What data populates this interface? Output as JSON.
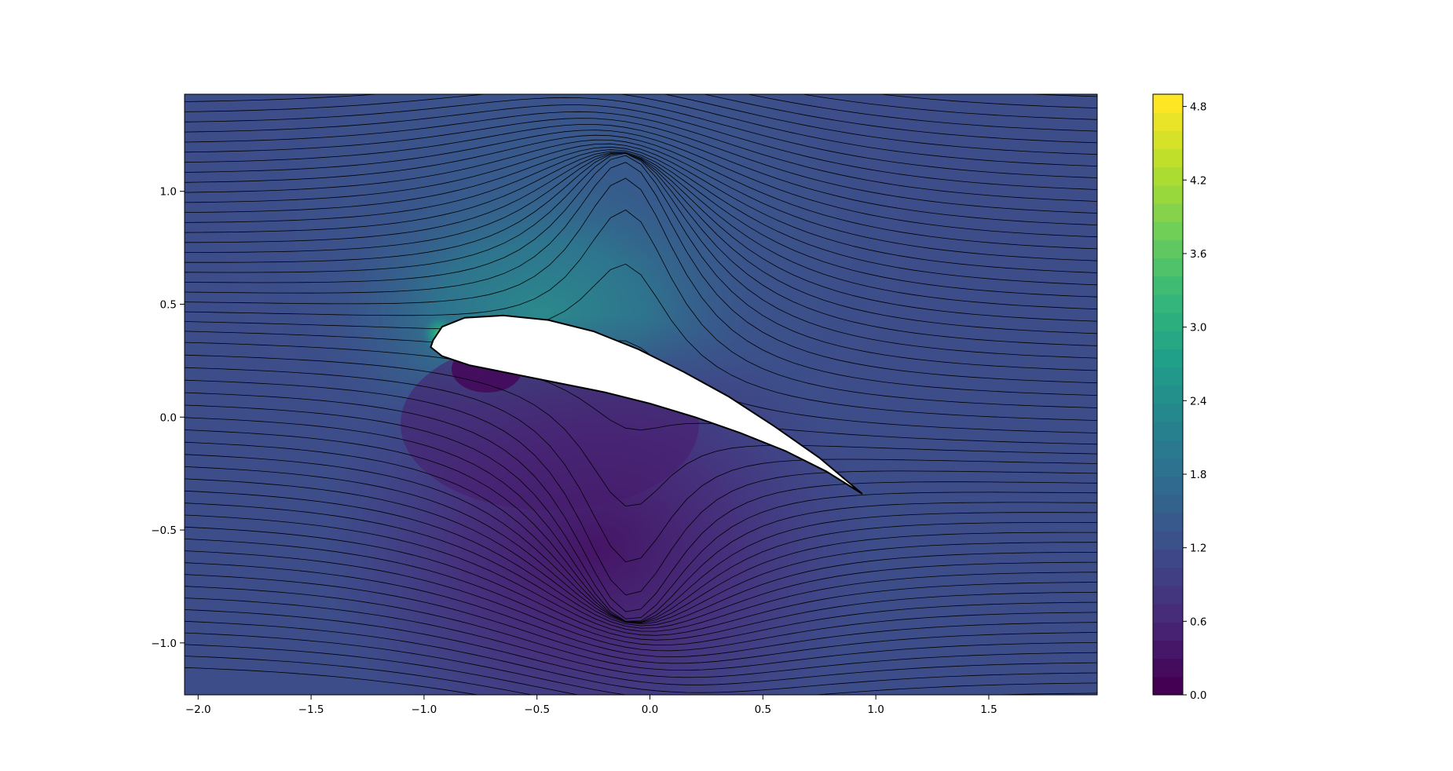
{
  "chart_data": {
    "type": "contour",
    "description_of_marks": "filled contours of speed magnitude with black streamlines around a cambered airfoil",
    "colormap": "viridis",
    "colormap_stops": [
      "#440154",
      "#482878",
      "#3e4989",
      "#31688e",
      "#26828e",
      "#1f9e89",
      "#35b779",
      "#6ece58",
      "#b5de2b",
      "#fde725"
    ],
    "x_range": [
      -2.06,
      1.98
    ],
    "y_range": [
      -1.23,
      1.43
    ],
    "x_ticks": [
      -2.0,
      -1.5,
      -1.0,
      -0.5,
      0.0,
      0.5,
      1.0,
      1.5
    ],
    "x_tick_labels": [
      "−2.0",
      "−1.5",
      "−1.0",
      "−0.5",
      "0.0",
      "0.5",
      "1.0",
      "1.5"
    ],
    "y_ticks": [
      1.0,
      0.5,
      0.0,
      -0.5,
      -1.0
    ],
    "y_tick_labels": [
      "1.0",
      "0.5",
      "0.0",
      "−0.5",
      "−1.0"
    ],
    "colorbar": {
      "range": [
        0.0,
        4.9
      ],
      "ticks": [
        0.0,
        0.6,
        1.2,
        1.8,
        2.4,
        3.0,
        3.6,
        4.2,
        4.8
      ],
      "tick_labels": [
        "0.0",
        "0.6",
        "1.2",
        "1.8",
        "2.4",
        "3.0",
        "3.6",
        "4.2",
        "4.8"
      ],
      "levels": 33
    },
    "airfoil": {
      "leading_edge": [
        -0.96,
        0.34
      ],
      "trailing_edge": [
        0.94,
        -0.34
      ],
      "fill": "#ffffff",
      "outline": "#000000"
    },
    "title": "",
    "xlabel": "",
    "ylabel": "",
    "grid": false,
    "legend": false
  }
}
